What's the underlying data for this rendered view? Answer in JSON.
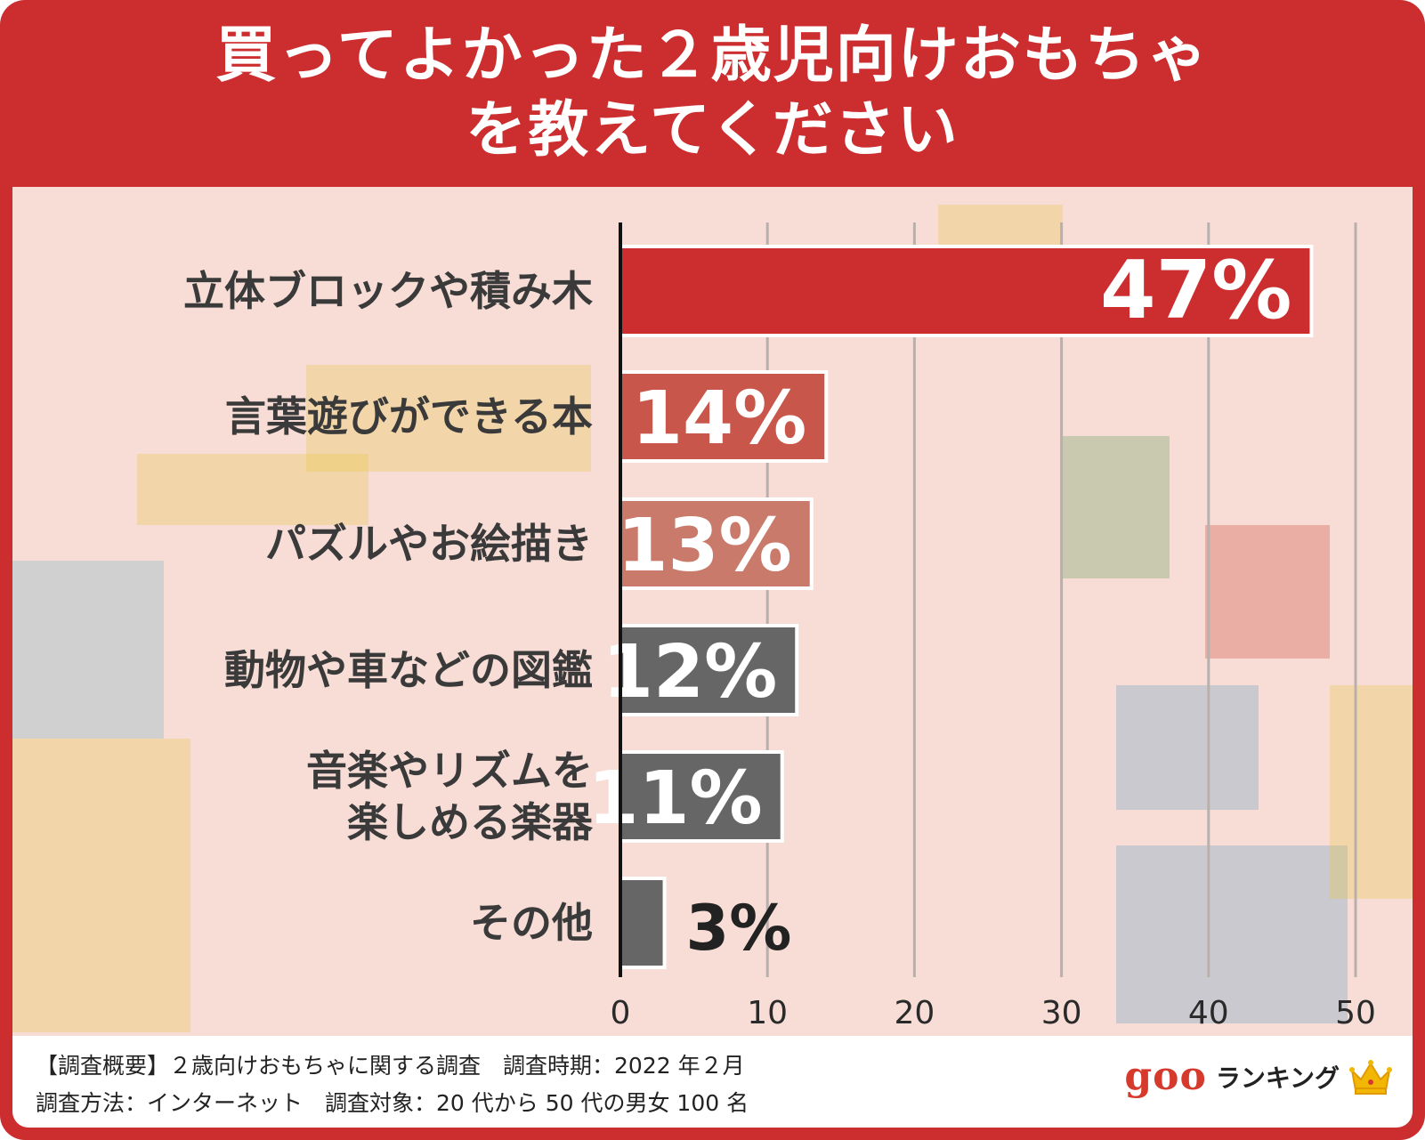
{
  "title": {
    "line1": "買ってよかった２歳児向けおもちゃ",
    "line2": "を教えてください"
  },
  "colors": {
    "frame": "#cc2d2f",
    "bar_top": "#cc2d2f",
    "bar_second": "#c9564a",
    "bar_third": "#c97a6a",
    "bar_gray": "#666666"
  },
  "chart_data": {
    "type": "bar",
    "orientation": "horizontal",
    "categories": [
      [
        "立体ブロックや積み木"
      ],
      [
        "言葉遊びができる本"
      ],
      [
        "パズルやお絵描き"
      ],
      [
        "動物や車などの図鑑"
      ],
      [
        "音楽やリズムを",
        "楽しめる楽器"
      ],
      [
        "その他"
      ]
    ],
    "values": [
      47,
      14,
      13,
      12,
      11,
      3
    ],
    "value_labels": [
      "47%",
      "14%",
      "13%",
      "12%",
      "11%",
      "3%"
    ],
    "xlim": [
      0,
      50
    ],
    "xticks": [
      "0",
      "10",
      "20",
      "30",
      "40",
      "50"
    ],
    "grid": true
  },
  "footer": {
    "line1": "【調査概要】２歳向けおもちゃに関する調査　調査時期：2022 年２月",
    "line2": "調査方法：インターネット　調査対象：20 代から 50 代の男女 100 名"
  },
  "logo": {
    "brand": "goo",
    "text": "ランキング",
    "icon": "crown-icon"
  }
}
